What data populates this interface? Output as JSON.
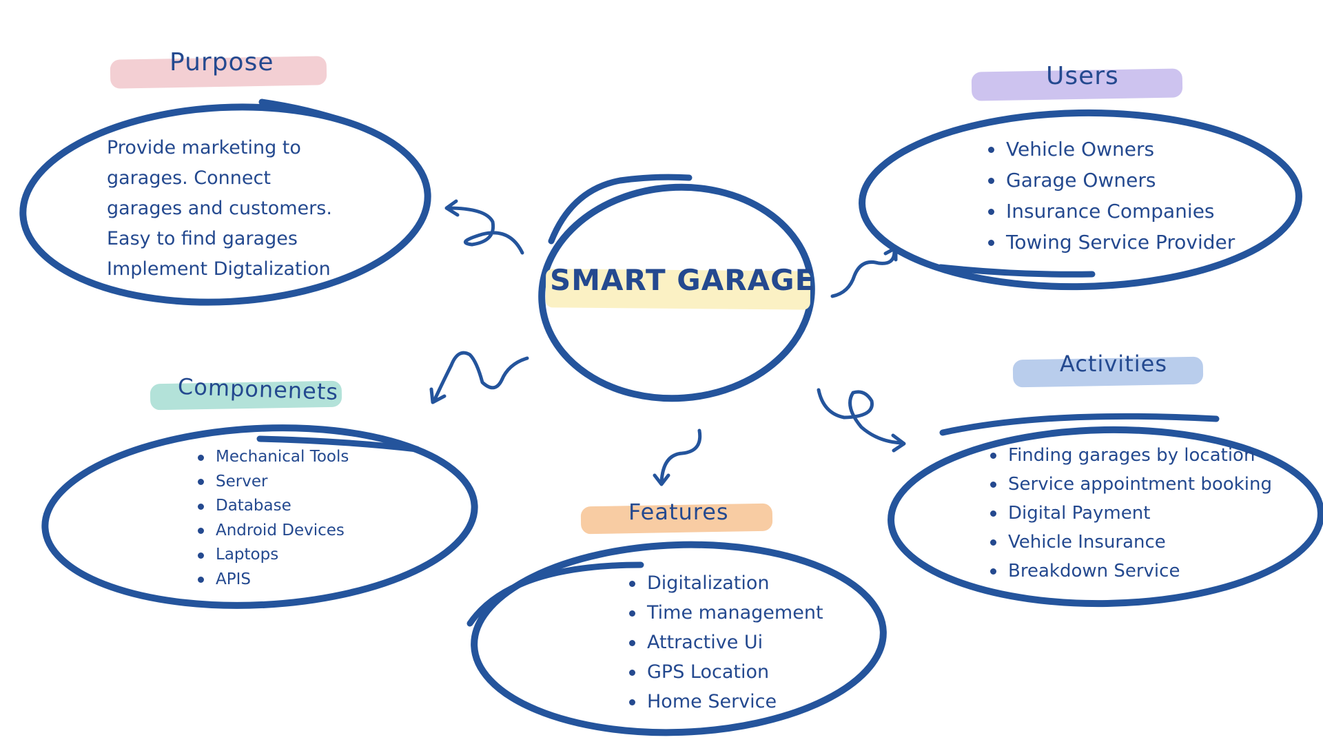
{
  "center": {
    "title": "SMART GARAGE"
  },
  "purpose": {
    "heading": "Purpose",
    "lines": [
      "Provide marketing to",
      "garages. Connect",
      "garages and customers.",
      "Easy to find garages",
      "Implement Digtalization"
    ]
  },
  "users": {
    "heading": "Users",
    "items": [
      "Vehicle Owners",
      "Garage Owners",
      "Insurance Companies",
      "Towing Service Provider"
    ]
  },
  "components": {
    "heading": "Componenets",
    "items": [
      "Mechanical Tools",
      "Server",
      "Database",
      "Android Devices",
      "Laptops",
      "APIS"
    ]
  },
  "features": {
    "heading": "Features",
    "items": [
      "Digitalization",
      "Time management",
      "Attractive Ui",
      "GPS Location",
      "Home Service"
    ]
  },
  "activities": {
    "heading": "Activities",
    "items": [
      "Finding garages by location",
      "Service appointment booking",
      "Digital Payment",
      "Vehicle Insurance",
      "Breakdown Service"
    ]
  },
  "colors": {
    "stroke": "#24549c",
    "text": "#24498f",
    "purpose_label": "#f3cfd3",
    "users_label": "#cdc3ef",
    "components_label": "#b3e2d9",
    "features_label": "#f8cca3",
    "activities_label": "#b9cdec",
    "center_highlight": "#fbf1c4"
  }
}
